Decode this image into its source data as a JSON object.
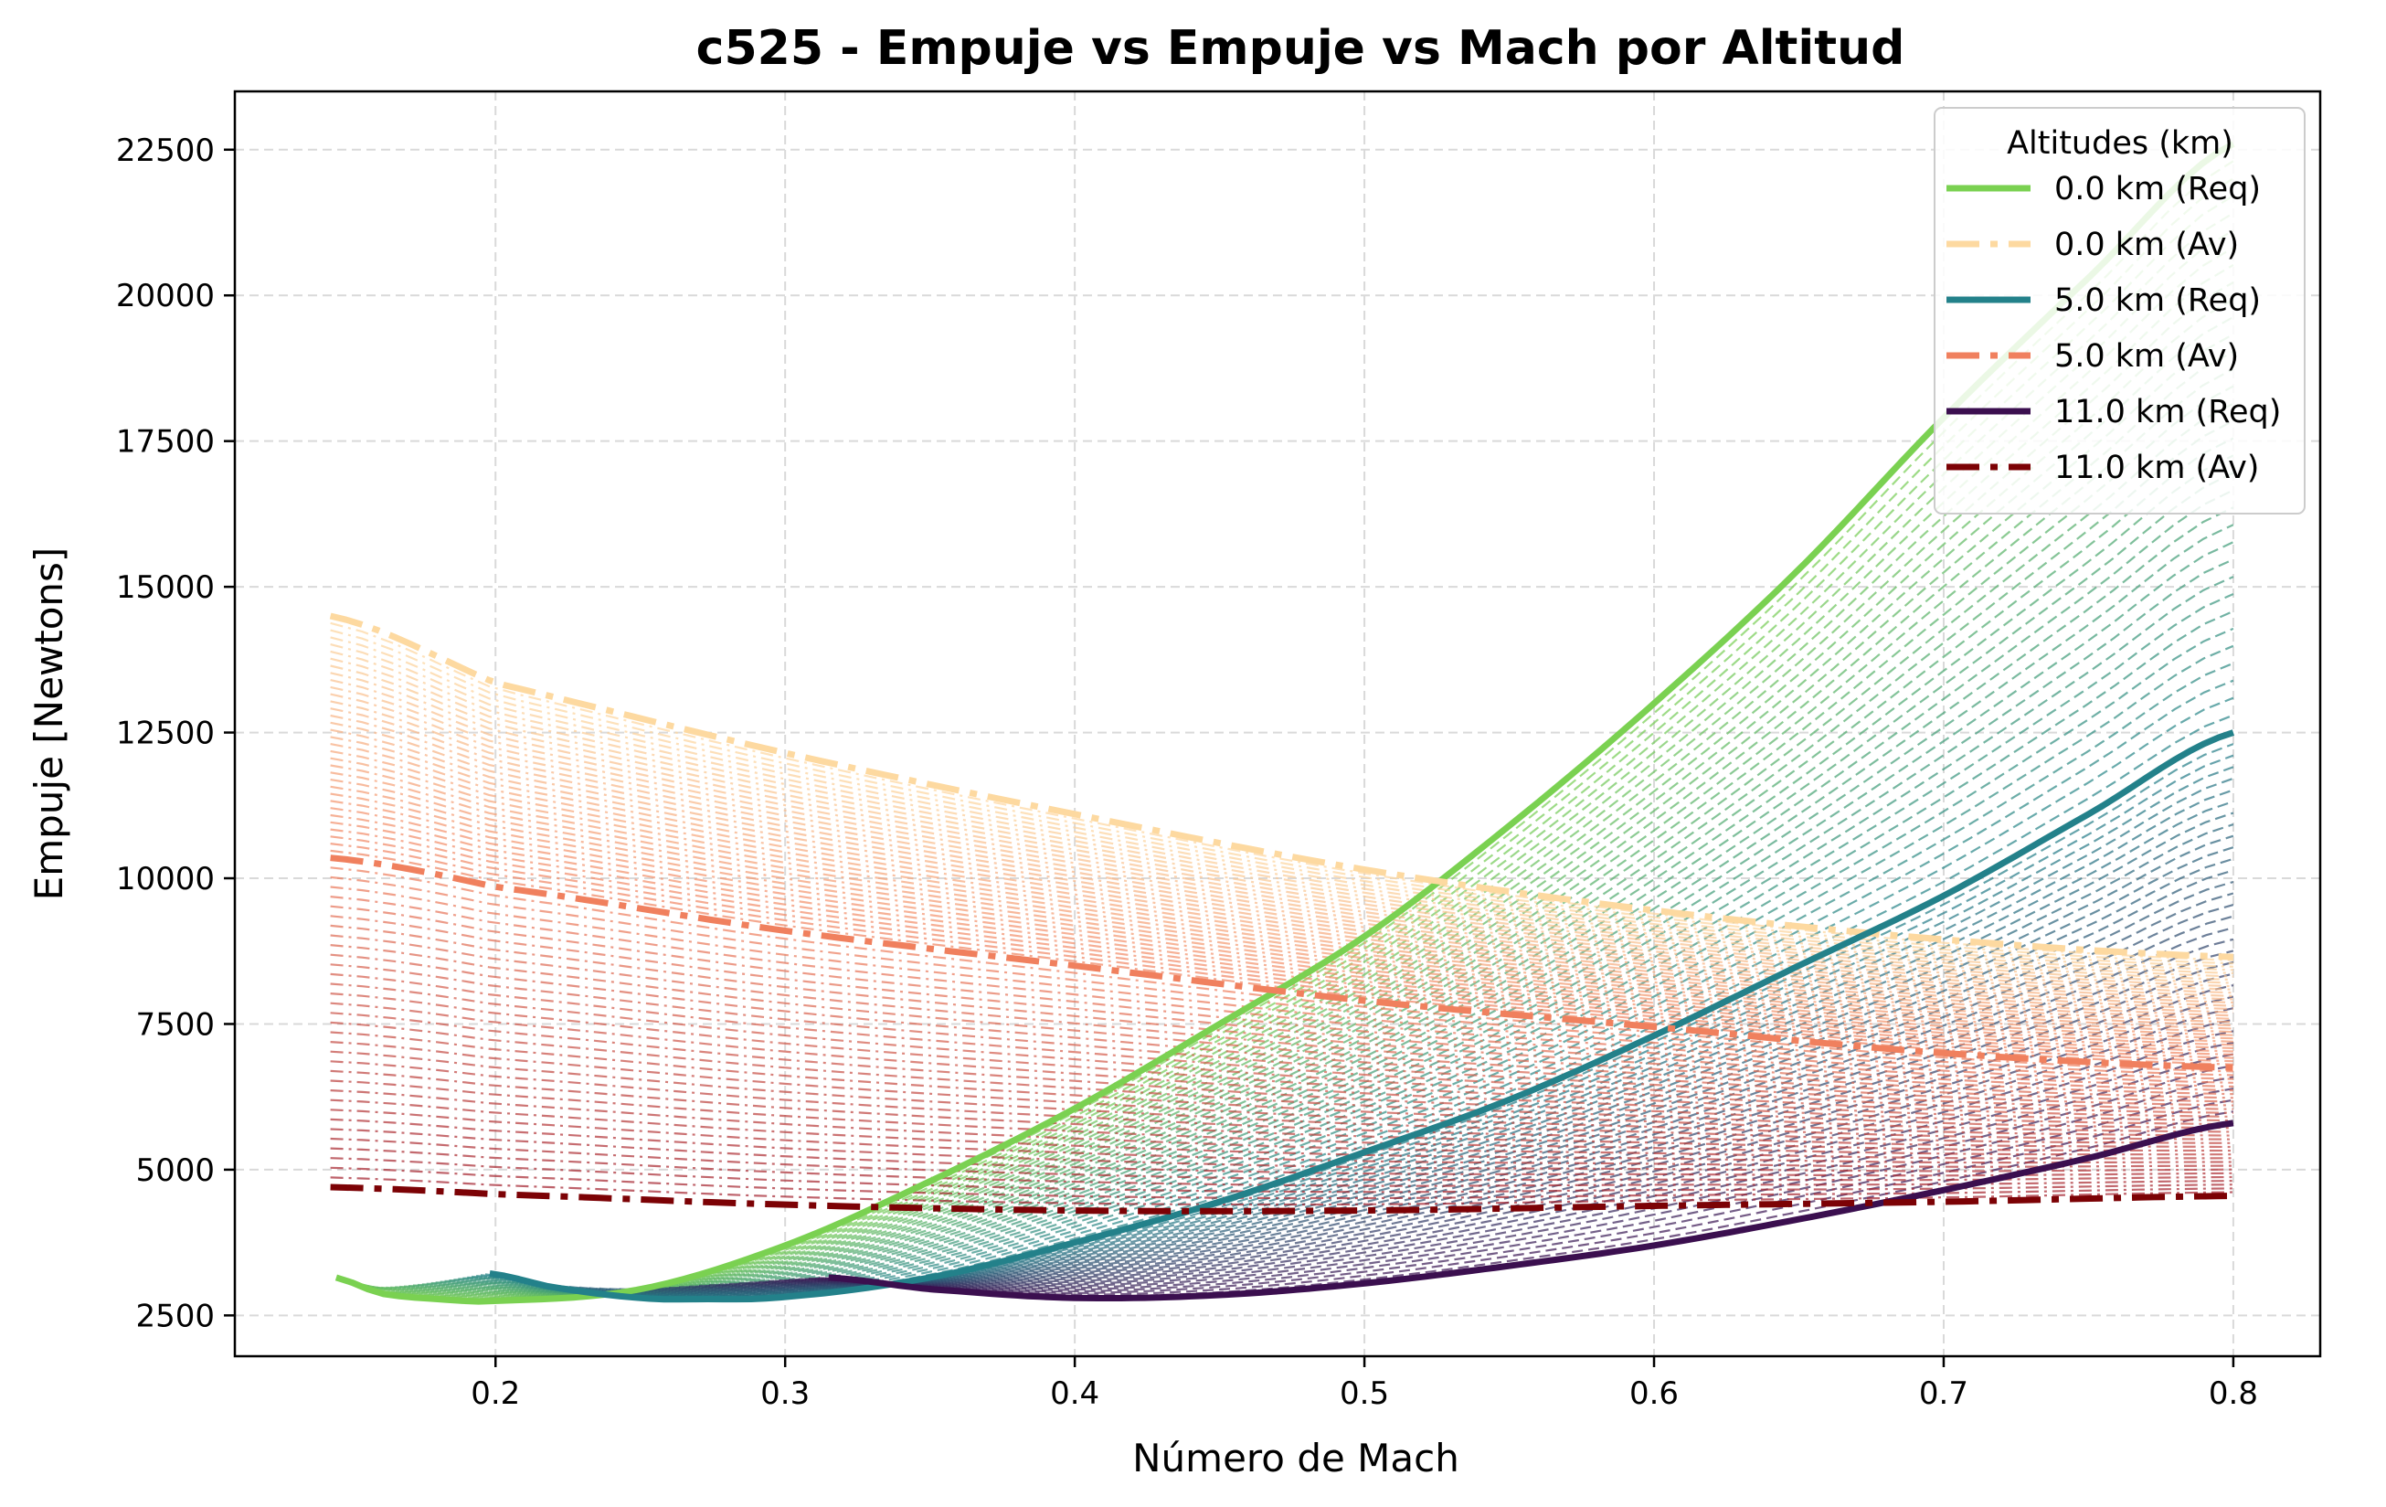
{
  "chart_data": {
    "type": "line",
    "title": "c525 - Empuje vs Empuje vs Mach por Altitud",
    "xlabel": "Número de Mach",
    "ylabel": "Empuje [Newtons]",
    "xlim": [
      0.11,
      0.83
    ],
    "ylim": [
      1800,
      23500
    ],
    "xticks": [
      0.2,
      0.3,
      0.4,
      0.5,
      0.6,
      0.7,
      0.8
    ],
    "xtick_labels": [
      "0.2",
      "0.3",
      "0.4",
      "0.5",
      "0.6",
      "0.7",
      "0.8"
    ],
    "yticks": [
      2500,
      5000,
      7500,
      10000,
      12500,
      15000,
      17500,
      20000,
      22500
    ],
    "ytick_labels": [
      "2500",
      "5000",
      "7500",
      "10000",
      "12500",
      "15000",
      "17500",
      "20000",
      "22500"
    ],
    "grid": true,
    "legend": {
      "title": "Altitudes (km)",
      "position": "top-right",
      "entries": [
        "0.0 km (Req)",
        "0.0 km (Av)",
        "5.0 km (Req)",
        "5.0 km (Av)",
        "11.0 km (Req)",
        "11.0 km (Av)"
      ]
    },
    "series": [
      {
        "name": "0.0 km (Req)",
        "color": "#7ad151",
        "style": "solid",
        "x": [
          0.145,
          0.16,
          0.18,
          0.2,
          0.25,
          0.3,
          0.35,
          0.4,
          0.45,
          0.5,
          0.55,
          0.6,
          0.65,
          0.7,
          0.75,
          0.8
        ],
        "y": [
          3150,
          2880,
          2780,
          2750,
          2950,
          3700,
          4800,
          6050,
          7500,
          9000,
          10900,
          13000,
          15300,
          17900,
          20300,
          22600
        ]
      },
      {
        "name": "0.0 km (Av)",
        "color": "#fdd9a0",
        "style": "dashdot",
        "x": [
          0.143,
          0.2,
          0.3,
          0.4,
          0.5,
          0.6,
          0.7,
          0.8
        ],
        "y": [
          14500,
          13350,
          12150,
          11100,
          10150,
          9450,
          8950,
          8650
        ]
      },
      {
        "name": "5.0 km (Req)",
        "color": "#23818a",
        "style": "solid",
        "x": [
          0.198,
          0.22,
          0.25,
          0.27,
          0.3,
          0.35,
          0.4,
          0.45,
          0.5,
          0.55,
          0.6,
          0.65,
          0.7,
          0.75,
          0.8
        ],
        "y": [
          3220,
          2980,
          2800,
          2780,
          2820,
          3150,
          3750,
          4450,
          5300,
          6200,
          7300,
          8500,
          9700,
          11100,
          12500
        ]
      },
      {
        "name": "5.0 km (Av)",
        "color": "#f0805e",
        "style": "dashdot",
        "x": [
          0.143,
          0.2,
          0.3,
          0.4,
          0.5,
          0.6,
          0.7,
          0.8
        ],
        "y": [
          10350,
          9850,
          9100,
          8500,
          7900,
          7450,
          7000,
          6750
        ]
      },
      {
        "name": "11.0 km (Req)",
        "color": "#3b0f4f",
        "style": "solid",
        "x": [
          0.315,
          0.35,
          0.4,
          0.45,
          0.5,
          0.55,
          0.6,
          0.65,
          0.7,
          0.75,
          0.8
        ],
        "y": [
          3150,
          2950,
          2800,
          2850,
          3050,
          3350,
          3700,
          4150,
          4650,
          5200,
          5800
        ]
      },
      {
        "name": "11.0 km (Av)",
        "color": "#7c0205",
        "style": "dashdot",
        "x": [
          0.143,
          0.2,
          0.3,
          0.4,
          0.5,
          0.6,
          0.7,
          0.8
        ],
        "y": [
          4700,
          4580,
          4400,
          4300,
          4300,
          4380,
          4450,
          4550
        ]
      }
    ]
  }
}
